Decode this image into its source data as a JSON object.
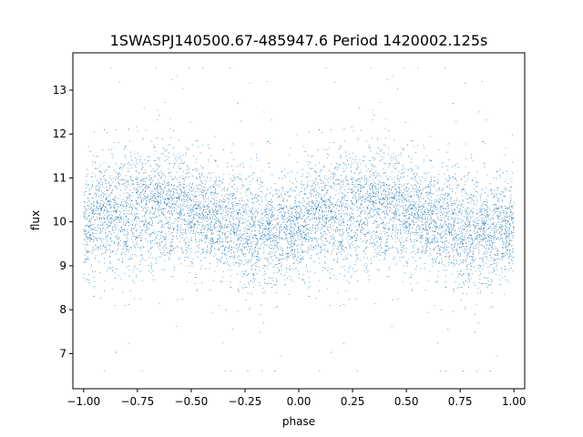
{
  "chart_data": {
    "type": "scatter",
    "title": "1SWASPJ140500.67-485947.6 Period 1420002.125s",
    "xlabel": "phase",
    "ylabel": "flux",
    "xlim": [
      -1.05,
      1.05
    ],
    "ylim": [
      6.2,
      13.85
    ],
    "x_ticks": [
      -1.0,
      -0.75,
      -0.5,
      -0.25,
      0.0,
      0.25,
      0.5,
      0.75,
      1.0
    ],
    "x_tick_labels": [
      "−1.00",
      "−0.75",
      "−0.50",
      "−0.25",
      "0.00",
      "0.25",
      "0.50",
      "0.75",
      "1.00"
    ],
    "y_ticks": [
      7,
      8,
      9,
      10,
      11,
      12,
      13
    ],
    "y_tick_labels": [
      "7",
      "8",
      "9",
      "10",
      "11",
      "12",
      "13"
    ],
    "grid": false,
    "marker_color": "#1f77b4",
    "approx_point_count": 9000,
    "note_points": "Dense phase-folded light curve mirrored over phase -1..1; representative points below (binned mean flux and typical spread).",
    "series": [
      {
        "x": [
          -1.0,
          -0.9,
          -0.8,
          -0.7,
          -0.6,
          -0.5,
          -0.4,
          -0.3,
          -0.2,
          -0.1,
          0.0,
          0.1,
          0.2,
          0.3,
          0.4,
          0.5,
          0.6,
          0.7,
          0.8,
          0.9,
          1.0
        ],
        "y": [
          9.8,
          10.2,
          10.2,
          10.3,
          10.35,
          10.3,
          10.0,
          9.95,
          9.75,
          9.8,
          9.8,
          10.2,
          10.2,
          10.3,
          10.35,
          10.3,
          10.0,
          9.95,
          9.75,
          9.8,
          9.8
        ],
        "spread": [
          0.55,
          0.6,
          0.75,
          0.65,
          0.6,
          0.6,
          0.55,
          0.6,
          0.7,
          0.55,
          0.5,
          0.6,
          0.75,
          0.65,
          0.6,
          0.6,
          0.55,
          0.6,
          0.7,
          0.55,
          0.55
        ]
      }
    ]
  }
}
